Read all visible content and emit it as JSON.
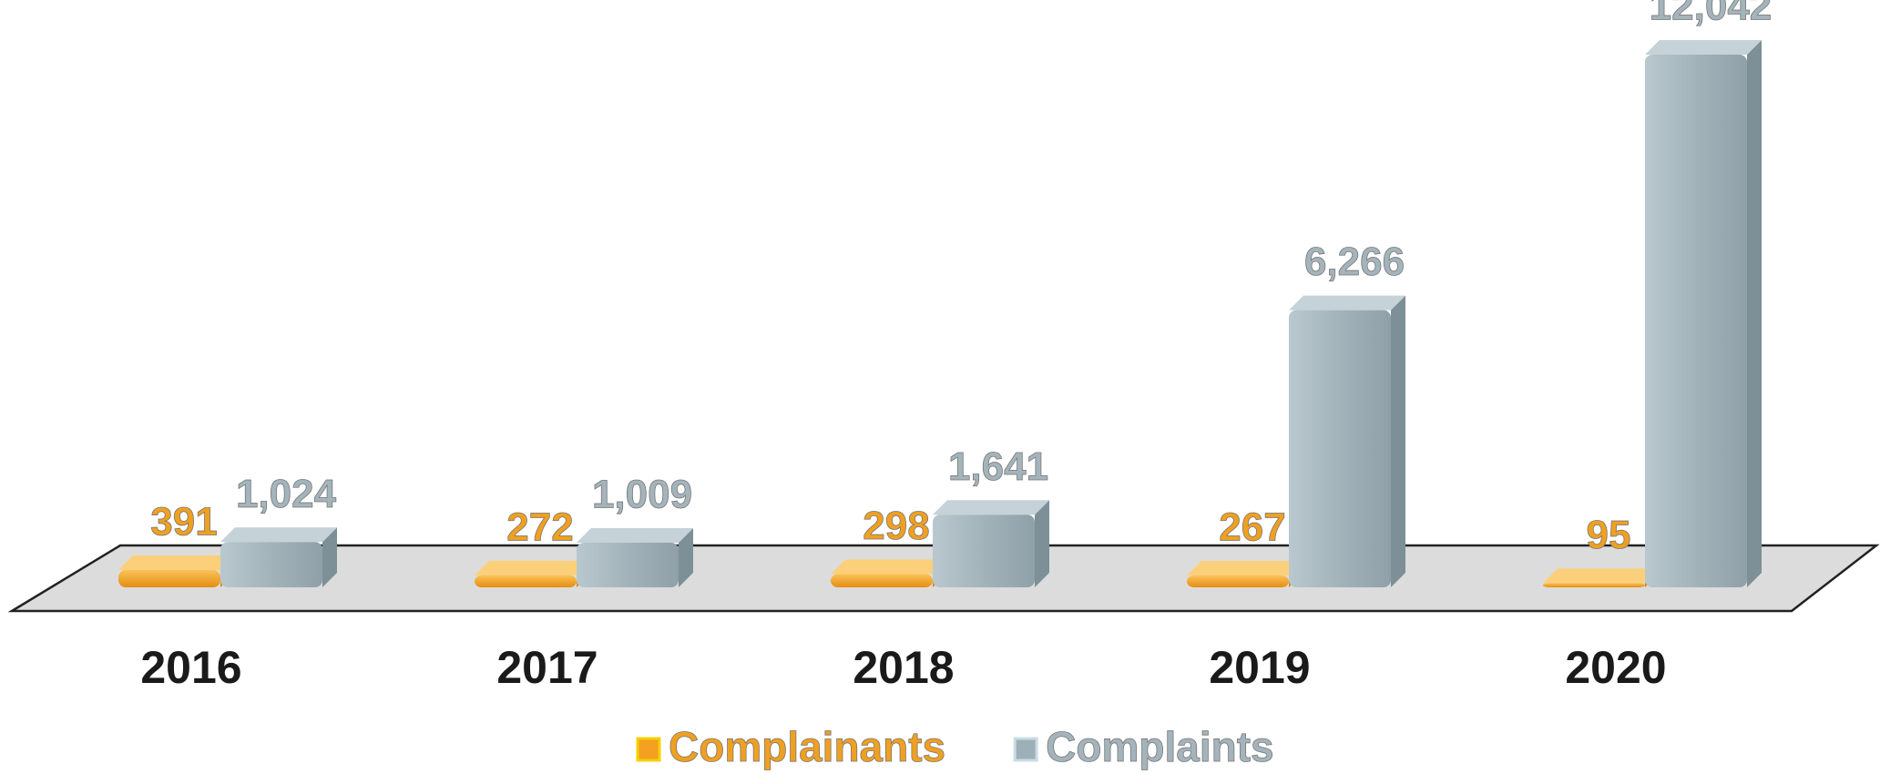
{
  "chart_data": {
    "type": "bar3d",
    "categories": [
      "2016",
      "2017",
      "2018",
      "2019",
      "2020"
    ],
    "series": [
      {
        "name": "Complainants",
        "color": "#f4a020",
        "values": [
          391,
          272,
          298,
          267,
          95
        ]
      },
      {
        "name": "Complaints",
        "color": "#9dafb7",
        "values": [
          1024,
          1009,
          1641,
          6266,
          12042
        ],
        "value_labels": [
          "1,024",
          "1,009",
          "1,641",
          "6,266",
          "12,042"
        ]
      }
    ]
  }
}
